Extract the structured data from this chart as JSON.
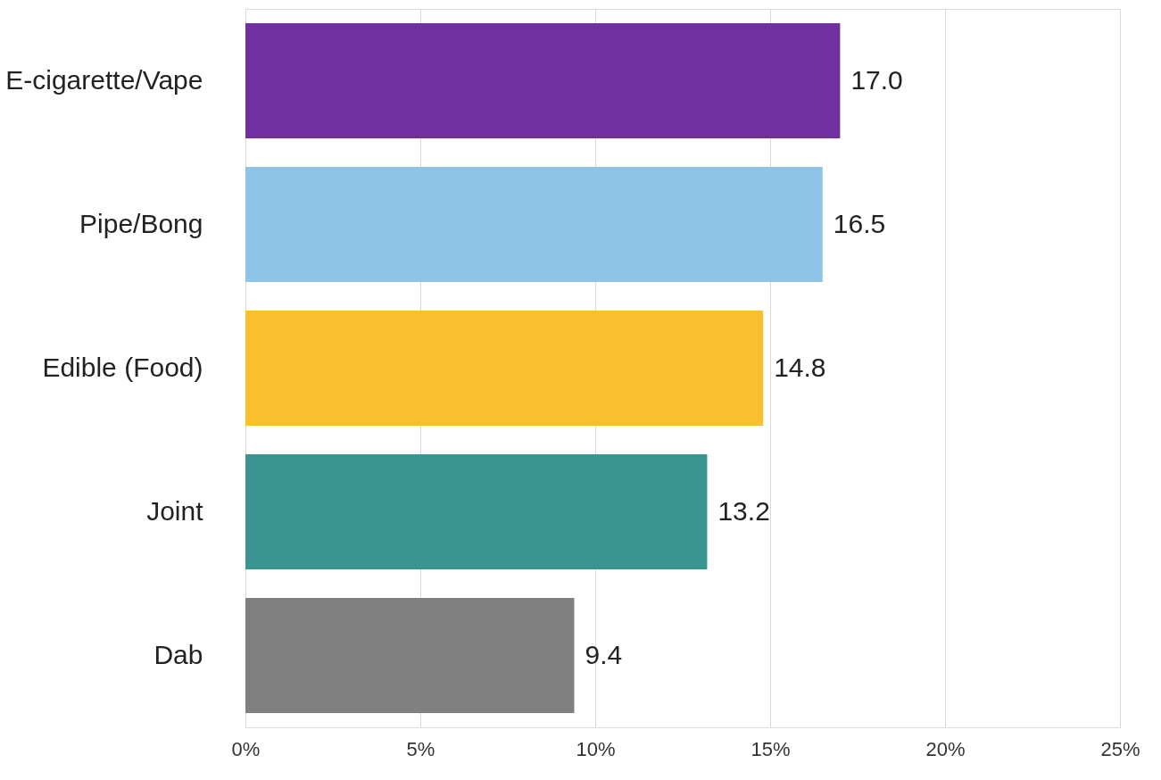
{
  "chart_data": {
    "type": "bar",
    "orientation": "horizontal",
    "categories": [
      "E-cigarette/Vape",
      "Pipe/Bong",
      "Edible (Food)",
      "Joint",
      "Dab"
    ],
    "values": [
      17.0,
      16.5,
      14.8,
      13.2,
      9.4
    ],
    "colors": [
      "#7030a0",
      "#8dc4e8",
      "#fbbf2d",
      "#3a9490",
      "#808080"
    ],
    "value_labels": [
      "17.0",
      "16.5",
      "14.8",
      "13.2",
      "9.4"
    ],
    "xlim": [
      0,
      25
    ],
    "xticks": [
      {
        "value": 0,
        "label": "0%"
      },
      {
        "value": 5,
        "label": "5%"
      },
      {
        "value": 10,
        "label": "10%"
      },
      {
        "value": 15,
        "label": "15%"
      },
      {
        "value": 20,
        "label": "20%"
      },
      {
        "value": 25,
        "label": "25%"
      }
    ],
    "grid": "x"
  }
}
